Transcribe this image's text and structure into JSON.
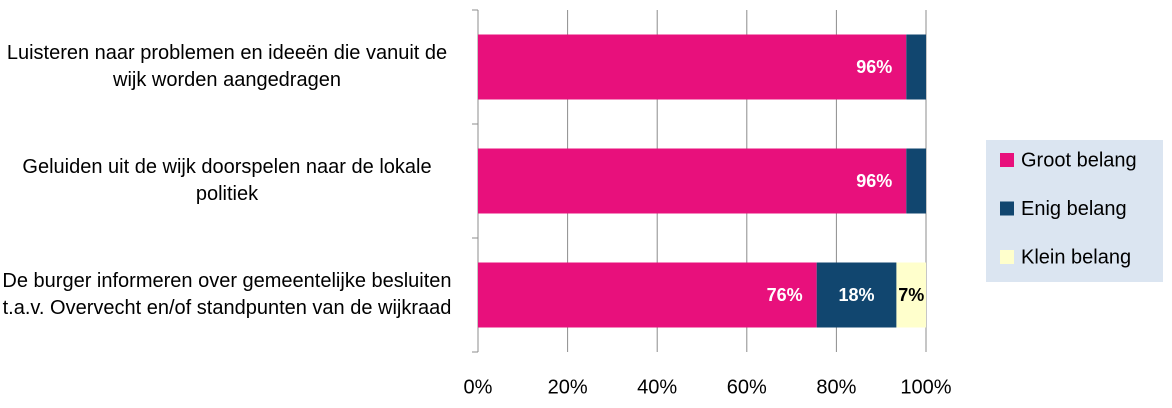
{
  "chart_data": {
    "type": "stacked_barh",
    "categories": [
      "Luisteren naar problemen en ideeën die vanuit de wijk worden aangedragen",
      "Geluiden uit de wijk doorspelen naar de lokale politiek",
      "De burger informeren over gemeentelijke besluiten t.a.v. Overvecht en/of standpunten van de wijkraad"
    ],
    "series": [
      {
        "name": "Groot belang",
        "color": "#e8107c",
        "values": [
          95.6,
          95.6,
          75.6
        ],
        "value_labels": [
          "96%",
          "96%",
          "76%"
        ]
      },
      {
        "name": "Enig belang",
        "color": "#11466f",
        "values": [
          4.4,
          4.4,
          17.8
        ],
        "value_labels": [
          null,
          null,
          "18%"
        ]
      },
      {
        "name": "Klein belang",
        "color": "#ffffcc",
        "values": [
          0,
          0,
          6.6
        ],
        "value_labels": [
          null,
          null,
          "7%"
        ]
      }
    ],
    "xlim": [
      0,
      100
    ],
    "xticks": [
      {
        "value": 0,
        "label": "0%"
      },
      {
        "value": 20,
        "label": "20%"
      },
      {
        "value": 40,
        "label": "40%"
      },
      {
        "value": 60,
        "label": "60%"
      },
      {
        "value": 80,
        "label": "80%"
      },
      {
        "value": 100,
        "label": "100%"
      }
    ],
    "grid": true,
    "legend": "right"
  }
}
